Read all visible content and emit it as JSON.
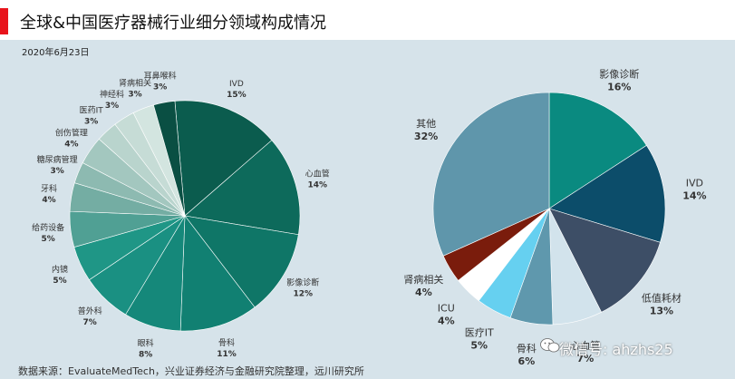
{
  "header": {
    "title": "全球&中国医疗器械行业细分领域构成情况",
    "date": "2020年6月23日"
  },
  "footer": {
    "source": "数据来源：EvaluateMedTech，兴业证券经济与金融研究院整理，远川研究所"
  },
  "watermark": {
    "text": "微信号: ahzhs25"
  },
  "chart_data": [
    {
      "type": "pie",
      "slices": [
        {
          "label": "IVD",
          "value": 15,
          "value_label": "15%",
          "color": "#0b5c4e"
        },
        {
          "label": "心血管",
          "value": 14,
          "value_label": "14%",
          "color": "#0d6a5b"
        },
        {
          "label": "影像诊断",
          "value": 12,
          "value_label": "12%",
          "color": "#0f7667"
        },
        {
          "label": "骨科",
          "value": 11,
          "value_label": "11%",
          "color": "#118072"
        },
        {
          "label": "眼科",
          "value": 8,
          "value_label": "8%",
          "color": "#15887a"
        },
        {
          "label": "普外科",
          "value": 7,
          "value_label": "7%",
          "color": "#1a9082"
        },
        {
          "label": "内镜",
          "value": 5,
          "value_label": "5%",
          "color": "#1f9686"
        },
        {
          "label": "给药设备",
          "value": 5,
          "value_label": "5%",
          "color": "#50a094"
        },
        {
          "label": "牙科",
          "value": 4,
          "value_label": "4%",
          "color": "#74ada3"
        },
        {
          "label": "糖尿病管理",
          "value": 3,
          "value_label": "3%",
          "color": "#8dbab1"
        },
        {
          "label": "创伤管理",
          "value": 4,
          "value_label": "4%",
          "color": "#a3c7bf"
        },
        {
          "label": "医药IT",
          "value": 3,
          "value_label": "3%",
          "color": "#b9d4cd"
        },
        {
          "label": "神经科",
          "value": 3,
          "value_label": "3%",
          "color": "#c6dcd6"
        },
        {
          "label": "肾病相关",
          "value": 3,
          "value_label": "3%",
          "color": "#d3e5e0"
        },
        {
          "label": "耳鼻喉科",
          "value": 3,
          "value_label": "3%",
          "color": "#0a4f43"
        }
      ]
    },
    {
      "type": "pie",
      "slices": [
        {
          "label": "影像诊断",
          "value": 16,
          "value_label": "16%",
          "color": "#0a8a80"
        },
        {
          "label": "IVD",
          "value": 14,
          "value_label": "14%",
          "color": "#0c4d6a"
        },
        {
          "label": "低值耗材",
          "value": 13,
          "value_label": "13%",
          "color": "#3d4e66"
        },
        {
          "label": "心血管",
          "value": 7,
          "value_label": "7%",
          "color": "#d2e3ec"
        },
        {
          "label": "骨科",
          "value": 6,
          "value_label": "6%",
          "color": "#5f98ad"
        },
        {
          "label": "医疗IT",
          "value": 5,
          "value_label": "5%",
          "color": "#66d0f0"
        },
        {
          "label": "ICU",
          "value": 4,
          "value_label": "4%",
          "color": "#ffffff"
        },
        {
          "label": "肾病相关",
          "value": 4,
          "value_label": "4%",
          "color": "#7a1c0c"
        },
        {
          "label": "其他",
          "value": 32,
          "value_label": "32%",
          "color": "#5f96ab"
        }
      ]
    }
  ]
}
